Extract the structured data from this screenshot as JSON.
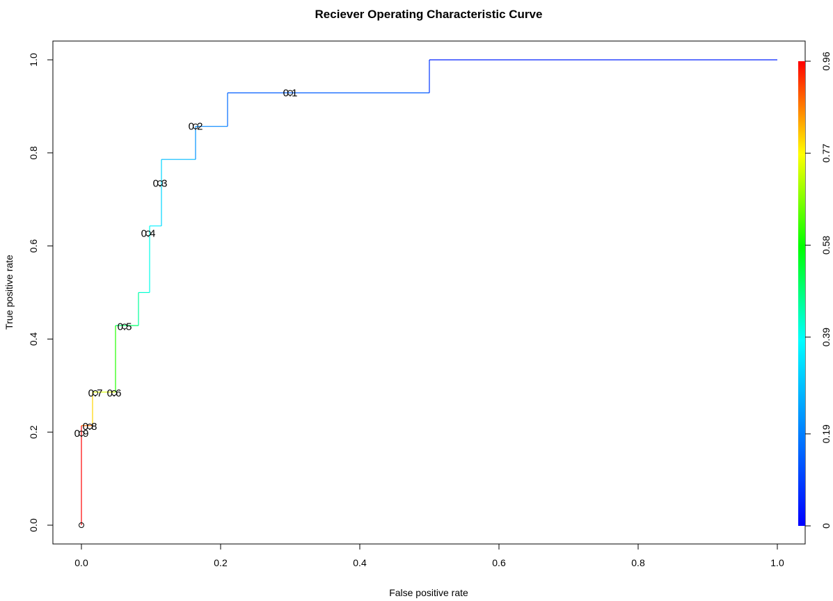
{
  "chart_data": {
    "type": "line",
    "title": "Reciever Operating Characteristic Curve",
    "xlabel": "False positive rate",
    "ylabel": "True positive rate",
    "xlim": [
      0,
      1
    ],
    "ylim": [
      0,
      1
    ],
    "x_ticks": [
      "0.0",
      "0.2",
      "0.4",
      "0.6",
      "0.8",
      "1.0"
    ],
    "y_ticks": [
      "0.0",
      "0.2",
      "0.4",
      "0.6",
      "0.8",
      "1.0"
    ],
    "grid": false,
    "series": [
      {
        "points": [
          {
            "x": 0.0,
            "y": 0.0,
            "cutoff": 0.96
          },
          {
            "x": 0.0,
            "y": 0.214,
            "cutoff": 0.88
          },
          {
            "x": 0.016,
            "y": 0.214,
            "cutoff": 0.8
          },
          {
            "x": 0.016,
            "y": 0.286,
            "cutoff": 0.74
          },
          {
            "x": 0.049,
            "y": 0.286,
            "cutoff": 0.6
          },
          {
            "x": 0.049,
            "y": 0.429,
            "cutoff": 0.5
          },
          {
            "x": 0.082,
            "y": 0.429,
            "cutoff": 0.46
          },
          {
            "x": 0.082,
            "y": 0.5,
            "cutoff": 0.42
          },
          {
            "x": 0.098,
            "y": 0.5,
            "cutoff": 0.4
          },
          {
            "x": 0.098,
            "y": 0.643,
            "cutoff": 0.36
          },
          {
            "x": 0.115,
            "y": 0.643,
            "cutoff": 0.32
          },
          {
            "x": 0.115,
            "y": 0.786,
            "cutoff": 0.28
          },
          {
            "x": 0.164,
            "y": 0.786,
            "cutoff": 0.22
          },
          {
            "x": 0.164,
            "y": 0.857,
            "cutoff": 0.2
          },
          {
            "x": 0.21,
            "y": 0.857,
            "cutoff": 0.16
          },
          {
            "x": 0.21,
            "y": 0.929,
            "cutoff": 0.14
          },
          {
            "x": 0.5,
            "y": 0.929,
            "cutoff": 0.08
          },
          {
            "x": 0.5,
            "y": 1.0,
            "cutoff": 0.05
          },
          {
            "x": 1.0,
            "y": 1.0,
            "cutoff": 0.0
          }
        ]
      }
    ],
    "cutoff_labels": [
      {
        "text": "0.9",
        "x": 0.0,
        "y": 0.197
      },
      {
        "text": "0.8",
        "x": 0.016,
        "y": 0.212
      },
      {
        "text": "0.7",
        "x": 0.033,
        "y": 0.284
      },
      {
        "text": "0.6",
        "x": 0.115,
        "y": 0.284,
        "x_data": 0.115
      },
      {
        "text": "0.5",
        "x": 0.066,
        "y": 0.427
      },
      {
        "text": "0.4",
        "x": 0.098,
        "y": 0.627
      },
      {
        "text": "0.3",
        "x": 0.115,
        "y": 0.735
      },
      {
        "text": "0.2",
        "x": 0.164,
        "y": 0.857
      },
      {
        "text": "0.1",
        "x": 0.295,
        "y": 0.929
      }
    ],
    "origin_marker": {
      "x": 0.0,
      "y": 0.0
    },
    "colorbar": {
      "ticks": [
        "0",
        "0.19",
        "0.39",
        "0.58",
        "0.77",
        "0.96"
      ],
      "range": [
        0,
        0.96
      ],
      "colors": [
        "#0000ff",
        "#00ffff",
        "#00ff00",
        "#ffff00",
        "#ff0000"
      ]
    }
  }
}
